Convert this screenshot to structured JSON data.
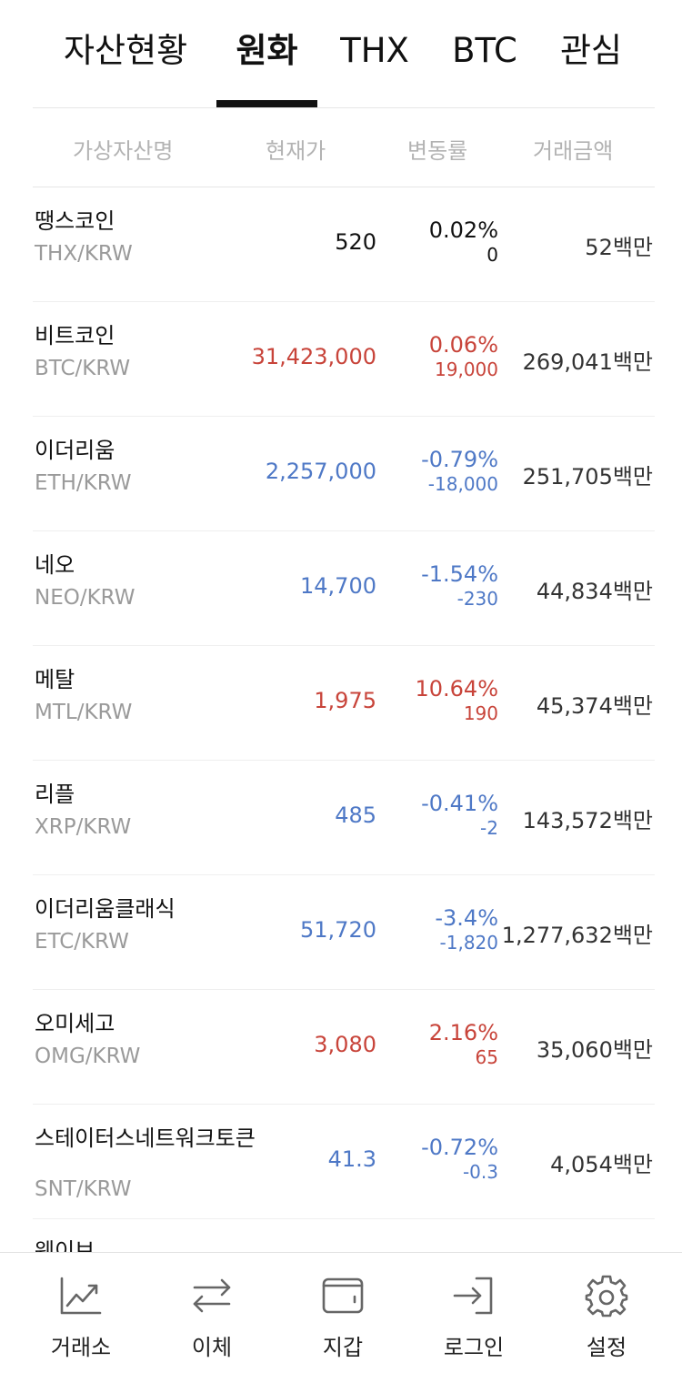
{
  "tabs": [
    {
      "label": "자산현황",
      "active": false
    },
    {
      "label": "원화",
      "active": true
    },
    {
      "label": "THX",
      "active": false
    },
    {
      "label": "BTC",
      "active": false
    },
    {
      "label": "관심",
      "active": false
    }
  ],
  "columns": {
    "name": "가상자산명",
    "price": "현재가",
    "change": "변동률",
    "volume": "거래금액"
  },
  "colors": {
    "up": "#c8443a",
    "down": "#4e78c6",
    "neutral": "#111111"
  },
  "coins": [
    {
      "name": "땡스코인",
      "pair": "THX/KRW",
      "price": "520",
      "pct": "0.02%",
      "chg": "0",
      "volume": "52백만",
      "trend": "neutral"
    },
    {
      "name": "비트코인",
      "pair": "BTC/KRW",
      "price": "31,423,000",
      "pct": "0.06%",
      "chg": "19,000",
      "volume": "269,041백만",
      "trend": "up"
    },
    {
      "name": "이더리움",
      "pair": "ETH/KRW",
      "price": "2,257,000",
      "pct": "-0.79%",
      "chg": "-18,000",
      "volume": "251,705백만",
      "trend": "down"
    },
    {
      "name": "네오",
      "pair": "NEO/KRW",
      "price": "14,700",
      "pct": "-1.54%",
      "chg": "-230",
      "volume": "44,834백만",
      "trend": "down"
    },
    {
      "name": "메탈",
      "pair": "MTL/KRW",
      "price": "1,975",
      "pct": "10.64%",
      "chg": "190",
      "volume": "45,374백만",
      "trend": "up"
    },
    {
      "name": "리플",
      "pair": "XRP/KRW",
      "price": "485",
      "pct": "-0.41%",
      "chg": "-2",
      "volume": "143,572백만",
      "trend": "down"
    },
    {
      "name": "이더리움클래식",
      "pair": "ETC/KRW",
      "price": "51,720",
      "pct": "-3.4%",
      "chg": "-1,820",
      "volume": "1,277,632백만",
      "trend": "down"
    },
    {
      "name": "오미세고",
      "pair": "OMG/KRW",
      "price": "3,080",
      "pct": "2.16%",
      "chg": "65",
      "volume": "35,060백만",
      "trend": "up"
    },
    {
      "name": "스테이터스네트워크토큰",
      "pair": "SNT/KRW",
      "price": "41.3",
      "pct": "-0.72%",
      "chg": "-0.3",
      "volume": "4,054백만",
      "trend": "down"
    }
  ],
  "peek_row": "웨이브",
  "nav": [
    {
      "label": "거래소",
      "icon": "chart-icon"
    },
    {
      "label": "이체",
      "icon": "transfer-icon"
    },
    {
      "label": "지갑",
      "icon": "wallet-icon"
    },
    {
      "label": "로그인",
      "icon": "login-icon"
    },
    {
      "label": "설정",
      "icon": "gear-icon"
    }
  ]
}
